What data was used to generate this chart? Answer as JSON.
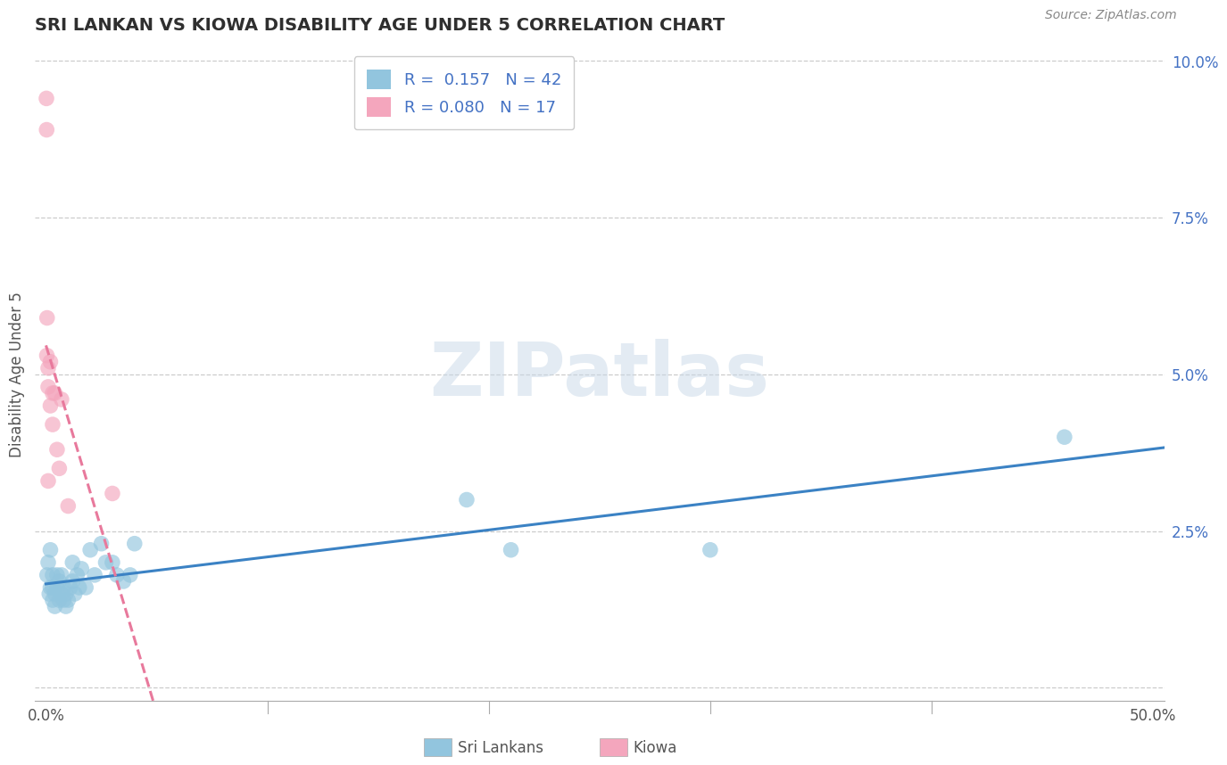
{
  "title": "SRI LANKAN VS KIOWA DISABILITY AGE UNDER 5 CORRELATION CHART",
  "source": "Source: ZipAtlas.com",
  "ylabel": "Disability Age Under 5",
  "legend_label1": "Sri Lankans",
  "legend_label2": "Kiowa",
  "R1": 0.157,
  "N1": 42,
  "R2": 0.08,
  "N2": 17,
  "xlim": [
    -0.005,
    0.505
  ],
  "ylim": [
    -0.002,
    0.102
  ],
  "xticks": [
    0.0,
    0.1,
    0.2,
    0.3,
    0.4,
    0.5
  ],
  "xtick_labels": [
    "0.0%",
    "",
    "",
    "",
    "",
    "50.0%"
  ],
  "yticks": [
    0.0,
    0.025,
    0.05,
    0.075,
    0.1
  ],
  "ytick_labels": [
    "",
    "2.5%",
    "5.0%",
    "7.5%",
    "10.0%"
  ],
  "color_blue": "#92c5de",
  "color_pink": "#f4a6bd",
  "trendline_blue": "#3b82c4",
  "trendline_pink": "#e8799c",
  "background": "#ffffff",
  "grid_color": "#cccccc",
  "sri_lankan_x": [
    0.0005,
    0.001,
    0.0015,
    0.002,
    0.002,
    0.003,
    0.003,
    0.003,
    0.004,
    0.004,
    0.005,
    0.005,
    0.006,
    0.006,
    0.007,
    0.007,
    0.008,
    0.008,
    0.009,
    0.009,
    0.01,
    0.011,
    0.012,
    0.012,
    0.013,
    0.014,
    0.015,
    0.016,
    0.018,
    0.02,
    0.022,
    0.025,
    0.027,
    0.03,
    0.032,
    0.035,
    0.038,
    0.04,
    0.19,
    0.21,
    0.3,
    0.46
  ],
  "sri_lankan_y": [
    0.018,
    0.02,
    0.015,
    0.022,
    0.016,
    0.014,
    0.016,
    0.018,
    0.013,
    0.015,
    0.016,
    0.018,
    0.014,
    0.017,
    0.015,
    0.018,
    0.014,
    0.016,
    0.013,
    0.015,
    0.014,
    0.016,
    0.017,
    0.02,
    0.015,
    0.018,
    0.016,
    0.019,
    0.016,
    0.022,
    0.018,
    0.023,
    0.02,
    0.02,
    0.018,
    0.017,
    0.018,
    0.023,
    0.03,
    0.022,
    0.022,
    0.04
  ],
  "kiowa_x": [
    0.0002,
    0.0003,
    0.0004,
    0.0005,
    0.001,
    0.001,
    0.001,
    0.002,
    0.002,
    0.003,
    0.003,
    0.004,
    0.005,
    0.006,
    0.007,
    0.01,
    0.03
  ],
  "kiowa_y": [
    0.094,
    0.089,
    0.053,
    0.059,
    0.051,
    0.048,
    0.033,
    0.052,
    0.045,
    0.047,
    0.042,
    0.047,
    0.038,
    0.035,
    0.046,
    0.029,
    0.031
  ],
  "watermark_text": "ZIPatlas",
  "watermark_color": "#c8d8e8",
  "watermark_alpha": 0.5
}
